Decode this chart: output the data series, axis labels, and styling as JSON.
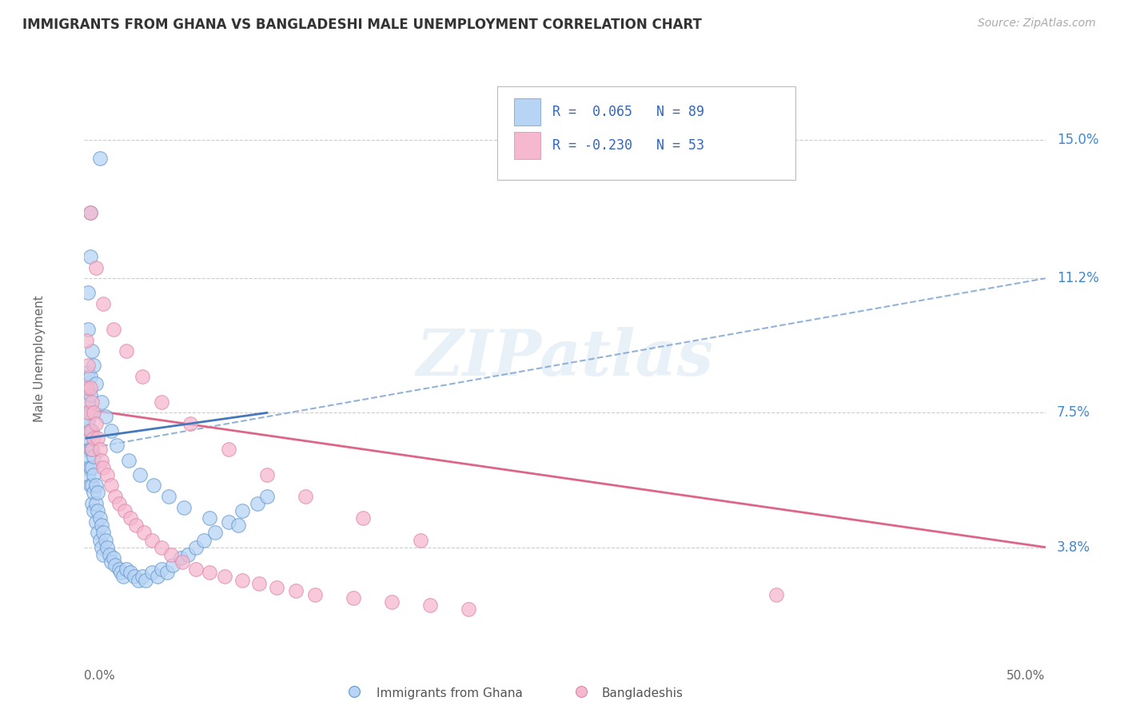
{
  "title": "IMMIGRANTS FROM GHANA VS BANGLADESHI MALE UNEMPLOYMENT CORRELATION CHART",
  "source": "Source: ZipAtlas.com",
  "ylabel": "Male Unemployment",
  "yticks": [
    0.038,
    0.075,
    0.112,
    0.15
  ],
  "ytick_labels": [
    "3.8%",
    "7.5%",
    "11.2%",
    "15.0%"
  ],
  "xtick_left": "0.0%",
  "xtick_right": "50.0%",
  "xmin": 0.0,
  "xmax": 0.5,
  "ymin": 0.012,
  "ymax": 0.168,
  "blue_color": "#b8d4f5",
  "blue_edge": "#6699cc",
  "pink_color": "#f5b8ce",
  "pink_edge": "#dd88a8",
  "trend_blue_color": "#4477bb",
  "trend_blue_dash_color": "#88aad4",
  "trend_pink_color": "#dd6688",
  "watermark_text": "ZIPatlas",
  "legend_label_blue": "Immigrants from Ghana",
  "legend_label_pink": "Bangladeshis",
  "legend_r_blue": "R =  0.065",
  "legend_n_blue": "N = 89",
  "legend_r_pink": "R = -0.230",
  "legend_n_pink": "N = 53",
  "blue_scatter_x": [
    0.001,
    0.001,
    0.001,
    0.001,
    0.001,
    0.001,
    0.002,
    0.002,
    0.002,
    0.002,
    0.002,
    0.002,
    0.002,
    0.003,
    0.003,
    0.003,
    0.003,
    0.003,
    0.003,
    0.003,
    0.004,
    0.004,
    0.004,
    0.004,
    0.004,
    0.005,
    0.005,
    0.005,
    0.005,
    0.006,
    0.006,
    0.006,
    0.007,
    0.007,
    0.007,
    0.008,
    0.008,
    0.009,
    0.009,
    0.01,
    0.01,
    0.011,
    0.012,
    0.013,
    0.014,
    0.015,
    0.016,
    0.018,
    0.019,
    0.02,
    0.022,
    0.024,
    0.026,
    0.028,
    0.03,
    0.032,
    0.035,
    0.038,
    0.04,
    0.043,
    0.046,
    0.05,
    0.054,
    0.058,
    0.062,
    0.068,
    0.075,
    0.082,
    0.09,
    0.095,
    0.008,
    0.003,
    0.003,
    0.002,
    0.002,
    0.004,
    0.005,
    0.006,
    0.009,
    0.011,
    0.014,
    0.017,
    0.023,
    0.029,
    0.036,
    0.044,
    0.052,
    0.065,
    0.08
  ],
  "blue_scatter_y": [
    0.06,
    0.065,
    0.07,
    0.075,
    0.068,
    0.072,
    0.058,
    0.063,
    0.068,
    0.073,
    0.078,
    0.082,
    0.086,
    0.055,
    0.06,
    0.065,
    0.07,
    0.075,
    0.08,
    0.085,
    0.05,
    0.055,
    0.06,
    0.065,
    0.07,
    0.048,
    0.053,
    0.058,
    0.063,
    0.045,
    0.05,
    0.055,
    0.042,
    0.048,
    0.053,
    0.04,
    0.046,
    0.038,
    0.044,
    0.036,
    0.042,
    0.04,
    0.038,
    0.036,
    0.034,
    0.035,
    0.033,
    0.032,
    0.031,
    0.03,
    0.032,
    0.031,
    0.03,
    0.029,
    0.03,
    0.029,
    0.031,
    0.03,
    0.032,
    0.031,
    0.033,
    0.035,
    0.036,
    0.038,
    0.04,
    0.042,
    0.045,
    0.048,
    0.05,
    0.052,
    0.145,
    0.13,
    0.118,
    0.108,
    0.098,
    0.092,
    0.088,
    0.083,
    0.078,
    0.074,
    0.07,
    0.066,
    0.062,
    0.058,
    0.055,
    0.052,
    0.049,
    0.046,
    0.044
  ],
  "pink_scatter_x": [
    0.001,
    0.001,
    0.002,
    0.002,
    0.003,
    0.003,
    0.004,
    0.004,
    0.005,
    0.005,
    0.006,
    0.007,
    0.008,
    0.009,
    0.01,
    0.012,
    0.014,
    0.016,
    0.018,
    0.021,
    0.024,
    0.027,
    0.031,
    0.035,
    0.04,
    0.045,
    0.051,
    0.058,
    0.065,
    0.073,
    0.082,
    0.091,
    0.1,
    0.11,
    0.12,
    0.14,
    0.16,
    0.18,
    0.2,
    0.003,
    0.006,
    0.01,
    0.015,
    0.022,
    0.03,
    0.04,
    0.055,
    0.075,
    0.095,
    0.115,
    0.145,
    0.175,
    0.36
  ],
  "pink_scatter_y": [
    0.082,
    0.095,
    0.075,
    0.088,
    0.07,
    0.082,
    0.065,
    0.078,
    0.068,
    0.075,
    0.072,
    0.068,
    0.065,
    0.062,
    0.06,
    0.058,
    0.055,
    0.052,
    0.05,
    0.048,
    0.046,
    0.044,
    0.042,
    0.04,
    0.038,
    0.036,
    0.034,
    0.032,
    0.031,
    0.03,
    0.029,
    0.028,
    0.027,
    0.026,
    0.025,
    0.024,
    0.023,
    0.022,
    0.021,
    0.13,
    0.115,
    0.105,
    0.098,
    0.092,
    0.085,
    0.078,
    0.072,
    0.065,
    0.058,
    0.052,
    0.046,
    0.04,
    0.025
  ]
}
